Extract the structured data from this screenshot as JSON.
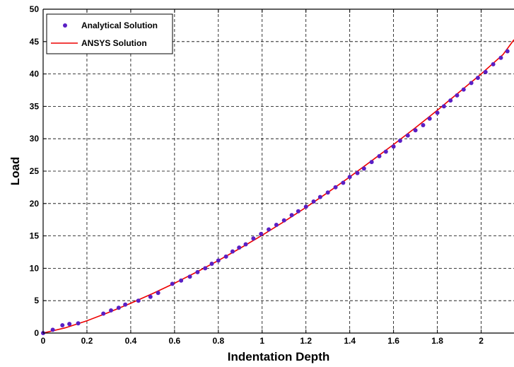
{
  "chart_data": {
    "type": "line",
    "title": "",
    "xlabel": "Indentation Depth",
    "ylabel": "Load",
    "xlim": [
      0,
      2.15
    ],
    "ylim": [
      0,
      50
    ],
    "xticks": [
      0,
      0.2,
      0.4,
      0.6,
      0.8,
      1,
      1.2,
      1.4,
      1.6,
      1.8,
      2
    ],
    "xtick_labels": [
      "0",
      "0.2",
      "0.4",
      "0.6",
      "0.8",
      "1",
      "1.2",
      "1.4",
      "1.6",
      "1.8",
      "2"
    ],
    "yticks": [
      0,
      5,
      10,
      15,
      20,
      25,
      30,
      35,
      40,
      45,
      50
    ],
    "ytick_labels": [
      "0",
      "5",
      "10",
      "15",
      "20",
      "25",
      "30",
      "35",
      "40",
      "45",
      "50"
    ],
    "grid": true,
    "grid_style": "dashed",
    "legend_position": "top-left",
    "series": [
      {
        "name": "Analytical Solution",
        "kind": "scatter",
        "color": "#5a1fc4",
        "x": [
          0,
          0.044,
          0.088,
          0.12,
          0.16,
          0.275,
          0.31,
          0.345,
          0.375,
          0.435,
          0.49,
          0.525,
          0.59,
          0.63,
          0.67,
          0.705,
          0.74,
          0.77,
          0.8,
          0.835,
          0.865,
          0.895,
          0.925,
          0.96,
          0.995,
          1.03,
          1.065,
          1.1,
          1.135,
          1.165,
          1.2,
          1.235,
          1.265,
          1.3,
          1.335,
          1.37,
          1.4,
          1.435,
          1.465,
          1.5,
          1.535,
          1.565,
          1.6,
          1.63,
          1.665,
          1.7,
          1.735,
          1.765,
          1.8,
          1.83,
          1.86,
          1.89,
          1.92,
          1.955,
          1.985,
          2.02,
          2.055,
          2.09,
          2.12
        ],
        "y": [
          0,
          0.5,
          1.2,
          1.4,
          1.5,
          3.0,
          3.5,
          3.9,
          4.4,
          5.0,
          5.6,
          6.2,
          7.6,
          8.1,
          8.7,
          9.4,
          10.0,
          10.7,
          11.2,
          11.8,
          12.6,
          13.2,
          13.7,
          14.6,
          15.3,
          16.0,
          16.7,
          17.4,
          18.2,
          18.8,
          19.5,
          20.3,
          21.0,
          21.7,
          22.5,
          23.2,
          24.1,
          24.7,
          25.4,
          26.4,
          27.3,
          28.0,
          28.8,
          29.7,
          30.5,
          31.3,
          32.1,
          33.1,
          34.0,
          35.0,
          35.9,
          36.7,
          37.6,
          38.6,
          39.4,
          40.3,
          41.5,
          42.5,
          43.5
        ]
      },
      {
        "name": "ANSYS Solution",
        "kind": "line",
        "color": "#ee0000",
        "x": [
          0,
          0.1,
          0.2,
          0.3,
          0.4,
          0.5,
          0.6,
          0.7,
          0.8,
          0.9,
          1.0,
          1.1,
          1.2,
          1.3,
          1.4,
          1.5,
          1.6,
          1.7,
          1.8,
          1.9,
          2.0,
          2.1,
          2.15
        ],
        "y": [
          0,
          0.8,
          1.9,
          3.2,
          4.6,
          6.1,
          7.7,
          9.4,
          11.2,
          13.1,
          15.1,
          17.2,
          19.4,
          21.7,
          24.1,
          26.6,
          29.1,
          31.7,
          34.4,
          37.2,
          40.0,
          43.0,
          45.3
        ]
      }
    ]
  }
}
